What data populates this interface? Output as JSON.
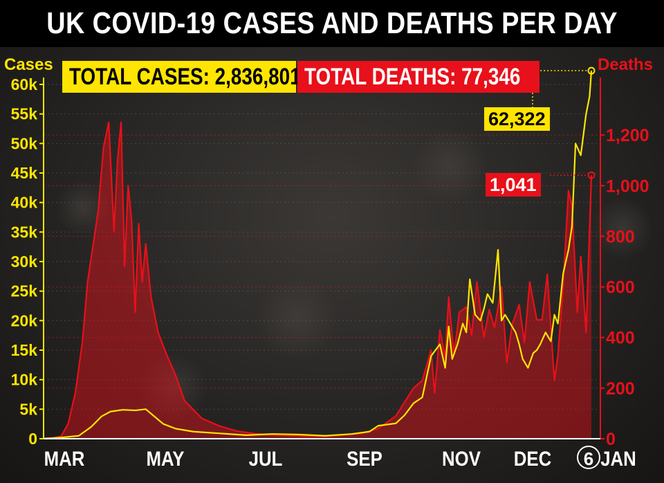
{
  "title": "UK COVID-19 CASES AND DEATHS PER DAY",
  "badges": {
    "total_cases": "TOTAL CASES: 2,836,801",
    "total_deaths": "TOTAL DEATHS: 77,346"
  },
  "callouts": {
    "latest_cases": "62,322",
    "latest_deaths": "1,041"
  },
  "colors": {
    "cases": "#ffe500",
    "deaths": "#e8101a",
    "background": "#2a2826",
    "title_bar": "#000000"
  },
  "chart_data": {
    "type": "line",
    "title": "UK COVID-19 CASES AND DEATHS PER DAY",
    "x_unit": "days since 1 March 2020 (0 = 1 Mar 2020, 311 = 6 Jan 2021)",
    "month_ticks": [
      {
        "label": "MAR",
        "x": 0
      },
      {
        "label": "MAY",
        "x": 61
      },
      {
        "label": "JUL",
        "x": 122
      },
      {
        "label": "SEP",
        "x": 184
      },
      {
        "label": "NOV",
        "x": 245
      },
      {
        "label": "DEC",
        "x": 275
      },
      {
        "label": "6",
        "x": 311
      },
      {
        "label": "JAN",
        "x": 311
      }
    ],
    "y_left": {
      "label": "Cases",
      "ylim": [
        0,
        60000
      ],
      "ticks": [
        0,
        5000,
        10000,
        15000,
        20000,
        25000,
        30000,
        35000,
        40000,
        45000,
        50000,
        55000,
        60000
      ],
      "tick_labels": [
        "0",
        "5k",
        "10k",
        "15k",
        "20k",
        "25k",
        "30k",
        "35k",
        "40k",
        "45k",
        "50k",
        "55k",
        "60k"
      ]
    },
    "y_right": {
      "label": "Deaths",
      "ylim": [
        0,
        1400
      ],
      "ticks": [
        0,
        200,
        400,
        600,
        800,
        1000,
        1200
      ],
      "tick_labels": [
        "0",
        "200",
        "400",
        "600",
        "800",
        "1,000",
        "1,200"
      ]
    },
    "series": [
      {
        "name": "Cases",
        "axis": "left",
        "color": "#ffe500",
        "x": [
          0,
          10,
          20,
          27,
          33,
          38,
          45,
          52,
          58,
          62,
          68,
          75,
          85,
          100,
          115,
          130,
          145,
          160,
          175,
          185,
          190,
          200,
          205,
          210,
          215,
          220,
          225,
          228,
          230,
          232,
          235,
          238,
          240,
          242,
          245,
          248,
          250,
          252,
          255,
          258,
          260,
          262,
          265,
          268,
          270,
          272,
          275,
          278,
          280,
          282,
          285,
          288,
          290,
          292,
          295,
          298,
          300,
          302,
          305,
          308,
          310,
          311
        ],
        "values": [
          30,
          200,
          500,
          2000,
          3800,
          4600,
          4900,
          4800,
          5000,
          4000,
          2500,
          1700,
          1200,
          900,
          600,
          800,
          700,
          500,
          800,
          1200,
          2200,
          2600,
          4000,
          6000,
          7000,
          14000,
          16000,
          12000,
          19000,
          13500,
          16000,
          19500,
          18000,
          27000,
          21000,
          20000,
          22000,
          24500,
          23000,
          32000,
          20000,
          21000,
          19500,
          18000,
          16000,
          13500,
          12000,
          14500,
          15000,
          16000,
          18000,
          16500,
          21000,
          19500,
          28000,
          32000,
          36000,
          50000,
          48000,
          55000,
          58000,
          62322
        ]
      },
      {
        "name": "Deaths",
        "axis": "right",
        "color": "#e8101a",
        "x": [
          0,
          5,
          10,
          14,
          18,
          22,
          25,
          28,
          31,
          34,
          37,
          40,
          42,
          44,
          46,
          48,
          50,
          52,
          54,
          56,
          58,
          61,
          65,
          70,
          75,
          80,
          90,
          100,
          110,
          120,
          130,
          140,
          150,
          160,
          170,
          180,
          190,
          200,
          210,
          215,
          220,
          222,
          225,
          228,
          230,
          233,
          236,
          240,
          243,
          246,
          250,
          253,
          256,
          260,
          263,
          266,
          270,
          273,
          276,
          280,
          283,
          286,
          290,
          292,
          295,
          298,
          300,
          303,
          305,
          308,
          311
        ],
        "values": [
          0,
          2,
          10,
          60,
          180,
          380,
          620,
          760,
          900,
          1150,
          1250,
          820,
          1100,
          1250,
          680,
          1000,
          860,
          500,
          850,
          620,
          770,
          560,
          420,
          330,
          250,
          150,
          80,
          50,
          30,
          20,
          15,
          12,
          10,
          10,
          15,
          20,
          40,
          90,
          200,
          230,
          350,
          180,
          430,
          320,
          560,
          330,
          500,
          520,
          410,
          620,
          400,
          510,
          440,
          600,
          300,
          450,
          530,
          380,
          620,
          470,
          470,
          650,
          230,
          330,
          610,
          980,
          920,
          500,
          720,
          420,
          1041
        ]
      }
    ],
    "annotations": [
      {
        "series": "Cases",
        "x": 311,
        "label": "62,322"
      },
      {
        "series": "Deaths",
        "x": 311,
        "label": "1,041"
      }
    ],
    "grid": true,
    "legend": "none"
  }
}
